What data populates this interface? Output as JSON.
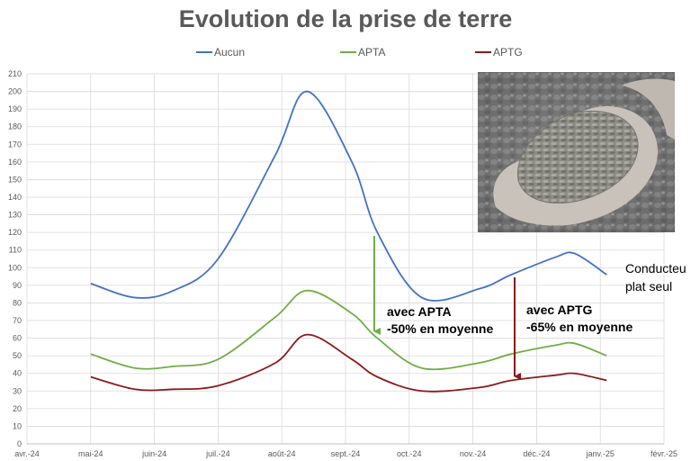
{
  "chart_data": {
    "type": "line",
    "title": "Evolution de la prise de terre",
    "xlabel": "",
    "ylabel": "",
    "ylim": [
      0,
      210
    ],
    "y_ticks": [
      0,
      10,
      20,
      30,
      40,
      50,
      60,
      70,
      80,
      90,
      100,
      110,
      120,
      130,
      140,
      150,
      160,
      170,
      180,
      190,
      200,
      210
    ],
    "x_ticks": [
      "avr.-24",
      "mai-24",
      "juin-24",
      "juil.-24",
      "août-24",
      "sept.-24",
      "oct.-24",
      "nov.-24",
      "déc.-24",
      "janv.-25",
      "févr.-25"
    ],
    "grid": true,
    "legend": "top",
    "x": [
      1,
      1.7,
      2.3,
      3,
      3.9,
      4.4,
      5.1,
      5.5,
      6.2,
      7.1,
      7.6,
      8.3,
      8.6,
      9.1
    ],
    "series": [
      {
        "name": "Aucun",
        "color": "#4472C4",
        "values": [
          91,
          83,
          87,
          105,
          164,
          200,
          160,
          120,
          83,
          88,
          96,
          106,
          108,
          96
        ]
      },
      {
        "name": "APTA",
        "color": "#70AD47",
        "values": [
          51,
          43,
          44,
          48,
          72,
          87,
          74,
          60,
          43,
          46,
          51,
          56,
          57,
          50
        ]
      },
      {
        "name": "APTG",
        "color": "#8B1A1A",
        "values": [
          38,
          31,
          31,
          33,
          46,
          62,
          48,
          38,
          30,
          32,
          36,
          39,
          40,
          36
        ]
      }
    ]
  },
  "annotations": {
    "apta": "avec APTA\n-50% en moyenne",
    "aptg": "avec APTG\n-65% en moyenne",
    "conducteur": "Conducteu\nplat seul"
  },
  "photo": {
    "icon": "hand-holding-pellets-photo"
  }
}
